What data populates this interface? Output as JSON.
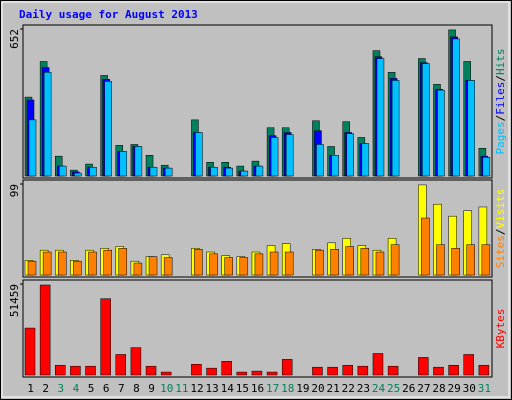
{
  "title": "Daily usage for August 2013",
  "chart_data": [
    {
      "type": "bar",
      "ylim": [
        0,
        652
      ],
      "yticks": [
        652
      ],
      "legend_separator": "/",
      "series": [
        {
          "name": "Hits",
          "color": "#00805c",
          "values": [
            350,
            508,
            88,
            26,
            53,
            446,
            136,
            140,
            92,
            48,
            0,
            249,
            61,
            61,
            44,
            66,
            214,
            214,
            0,
            245,
            131,
            241,
            171,
            556,
            460,
            0,
            521,
            407,
            648,
            508,
            123
          ]
        },
        {
          "name": "Files",
          "color": "#0000ff",
          "values": [
            337,
            481,
            44,
            18,
            39,
            429,
            109,
            131,
            39,
            35,
            0,
            193,
            39,
            39,
            22,
            44,
            179,
            193,
            0,
            201,
            92,
            193,
            144,
            529,
            433,
            0,
            503,
            385,
            617,
            424,
            88
          ]
        },
        {
          "name": "Pages",
          "color": "#00c0ff",
          "values": [
            249,
            460,
            44,
            13,
            39,
            420,
            109,
            131,
            39,
            35,
            0,
            193,
            39,
            35,
            22,
            44,
            171,
            184,
            0,
            140,
            92,
            188,
            144,
            521,
            424,
            0,
            499,
            381,
            608,
            424,
            83
          ]
        }
      ]
    },
    {
      "type": "bar",
      "ylim": [
        0,
        99
      ],
      "yticks": [
        99
      ],
      "legend_separator": "/",
      "series": [
        {
          "name": "Visits",
          "color": "#ffff00",
          "values": [
            16,
            27,
            27,
            16,
            27,
            29,
            31,
            15,
            20,
            22,
            0,
            29,
            25,
            21,
            20,
            25,
            32,
            34,
            0,
            28,
            35,
            40,
            32,
            27,
            40,
            0,
            98,
            77,
            64,
            70,
            74
          ]
        },
        {
          "name": "Sites",
          "color": "#ff8000",
          "values": [
            15,
            25,
            25,
            15,
            25,
            27,
            29,
            13,
            20,
            19,
            0,
            28,
            23,
            19,
            19,
            23,
            25,
            25,
            0,
            27,
            28,
            31,
            29,
            25,
            33,
            0,
            62,
            33,
            29,
            33,
            33
          ]
        }
      ]
    },
    {
      "type": "bar",
      "ylim": [
        0,
        51459
      ],
      "yticks": [
        51459
      ],
      "categories": [
        "1",
        "2",
        "3",
        "4",
        "5",
        "6",
        "7",
        "8",
        "9",
        "10",
        "11",
        "12",
        "13",
        "14",
        "15",
        "16",
        "17",
        "18",
        "19",
        "20",
        "21",
        "22",
        "23",
        "24",
        "25",
        "26",
        "27",
        "28",
        "29",
        "30",
        "31"
      ],
      "highlight_categories": [
        2,
        3,
        9,
        10,
        16,
        17,
        23,
        24,
        30
      ],
      "highlight_color": "#00805c",
      "category_color": "#000000",
      "series": [
        {
          "name": "KBytes",
          "color": "#ff0000",
          "values": [
            26550,
            50900,
            5530,
            4980,
            4980,
            43130,
            11610,
            15480,
            4980,
            1660,
            0,
            6080,
            3870,
            7740,
            1660,
            2210,
            1660,
            8850,
            0,
            4420,
            4420,
            5530,
            4980,
            12170,
            4980,
            0,
            9950,
            4420,
            5530,
            11610,
            5530
          ]
        }
      ]
    }
  ]
}
